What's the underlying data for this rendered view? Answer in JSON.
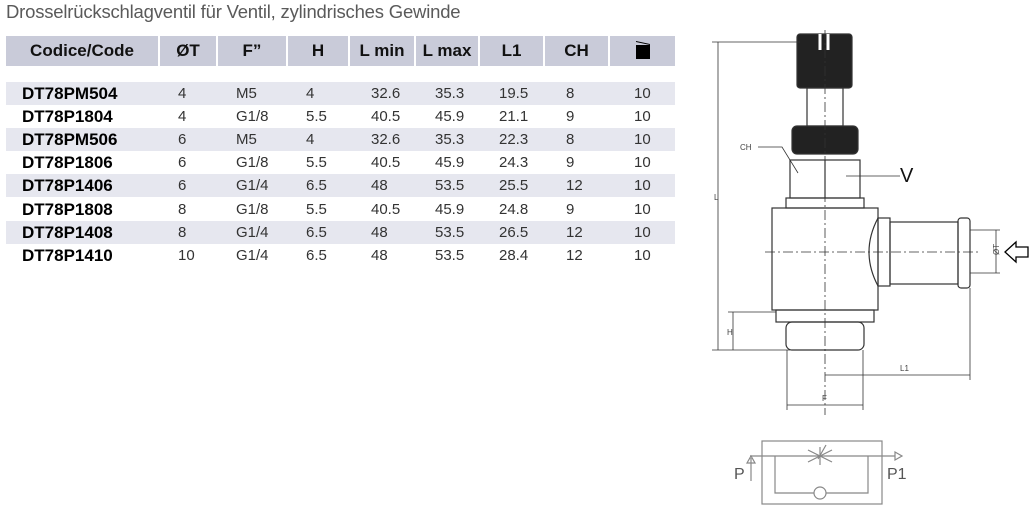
{
  "subtitle": "Drosselrückschlagventil für Ventil, zylindrisches Gewinde",
  "table": {
    "headers": [
      "Codice/Code",
      "ØT",
      "F”",
      "H",
      "L min",
      "L max",
      "L1",
      "CH"
    ],
    "package_icon": "box-icon",
    "rows": [
      [
        "DT78PM504",
        "4",
        "M5",
        "4",
        "32.6",
        "35.3",
        "19.5",
        "8",
        "10"
      ],
      [
        "DT78P1804",
        "4",
        "G1/8",
        "5.5",
        "40.5",
        "45.9",
        "21.1",
        "9",
        "10"
      ],
      [
        "DT78PM506",
        "6",
        "M5",
        "4",
        "32.6",
        "35.3",
        "22.3",
        "8",
        "10"
      ],
      [
        "DT78P1806",
        "6",
        "G1/8",
        "5.5",
        "40.5",
        "45.9",
        "24.3",
        "9",
        "10"
      ],
      [
        "DT78P1406",
        "6",
        "G1/4",
        "6.5",
        "48",
        "53.5",
        "25.5",
        "12",
        "10"
      ],
      [
        "DT78P1808",
        "8",
        "G1/8",
        "5.5",
        "40.5",
        "45.9",
        "24.8",
        "9",
        "10"
      ],
      [
        "DT78P1408",
        "8",
        "G1/4",
        "6.5",
        "48",
        "53.5",
        "26.5",
        "12",
        "10"
      ],
      [
        "DT78P1410",
        "10",
        "G1/4",
        "6.5",
        "48",
        "53.5",
        "28.4",
        "12",
        "10"
      ]
    ]
  },
  "drawing": {
    "labels": {
      "L": "L",
      "CH": "CH",
      "V": "V",
      "T": "ØT",
      "H": "H",
      "L1": "L1",
      "F": "F"
    }
  },
  "symbol": {
    "inlet": "P",
    "outlet": "P1"
  },
  "colors": {
    "header_bg": "#c9cbd9",
    "row_shade": "#e6e7ef"
  }
}
